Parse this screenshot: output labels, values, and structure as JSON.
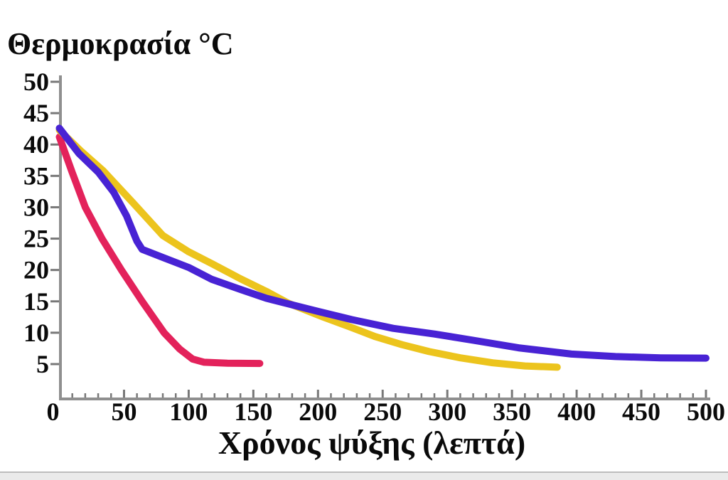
{
  "chart_data": {
    "type": "line",
    "y_axis_title": "Θερμοκρασία °C",
    "x_axis_title": "Χρόνος ψύξης (λεπτά)",
    "xlim": [
      0,
      500
    ],
    "ylim": [
      0,
      51
    ],
    "x_ticks": [
      0,
      50,
      100,
      150,
      200,
      250,
      300,
      350,
      400,
      450,
      500
    ],
    "x_minor_tick_step": 10,
    "y_ticks": [
      50,
      45,
      40,
      35,
      30,
      25,
      20,
      15,
      10,
      5
    ],
    "grid": false,
    "legend": false,
    "axis_color": "#8f8f8f",
    "tick_color": "#787878",
    "text_color": "#0a0a0a",
    "series": [
      {
        "name": "red-curve",
        "color": "#E3225B",
        "points": [
          [
            0,
            41.2
          ],
          [
            10,
            35.5
          ],
          [
            20,
            30
          ],
          [
            33,
            25
          ],
          [
            48,
            20
          ],
          [
            64,
            15
          ],
          [
            81,
            10
          ],
          [
            93,
            7.4
          ],
          [
            103,
            5.8
          ],
          [
            112,
            5.3
          ],
          [
            130,
            5.15
          ],
          [
            155,
            5.1
          ]
        ]
      },
      {
        "name": "yellow-curve",
        "color": "#ECC41D",
        "points": [
          [
            0,
            42.3
          ],
          [
            17,
            38.9
          ],
          [
            34,
            35.8
          ],
          [
            57,
            30.7
          ],
          [
            80,
            25.5
          ],
          [
            100,
            22.9
          ],
          [
            118,
            21
          ],
          [
            140,
            18.6
          ],
          [
            160,
            16.6
          ],
          [
            177,
            14.7
          ],
          [
            204,
            12.5
          ],
          [
            225,
            10.9
          ],
          [
            244,
            9.4
          ],
          [
            265,
            8.1
          ],
          [
            286,
            7
          ],
          [
            310,
            6
          ],
          [
            335,
            5.2
          ],
          [
            360,
            4.7
          ],
          [
            385,
            4.5
          ]
        ]
      },
      {
        "name": "blue-curve",
        "color": "#4823D4",
        "points": [
          [
            0,
            42.6
          ],
          [
            15,
            38.6
          ],
          [
            30,
            35.6
          ],
          [
            42,
            32.4
          ],
          [
            52,
            28.6
          ],
          [
            60,
            24.6
          ],
          [
            64,
            23.3
          ],
          [
            80,
            22
          ],
          [
            100,
            20.4
          ],
          [
            118,
            18.5
          ],
          [
            140,
            16.9
          ],
          [
            160,
            15.5
          ],
          [
            177,
            14.6
          ],
          [
            200,
            13.4
          ],
          [
            226,
            12.1
          ],
          [
            258,
            10.7
          ],
          [
            290,
            9.8
          ],
          [
            320,
            8.8
          ],
          [
            355,
            7.6
          ],
          [
            396,
            6.6
          ],
          [
            430,
            6.2
          ],
          [
            465,
            6
          ],
          [
            500,
            5.95
          ]
        ]
      }
    ]
  }
}
